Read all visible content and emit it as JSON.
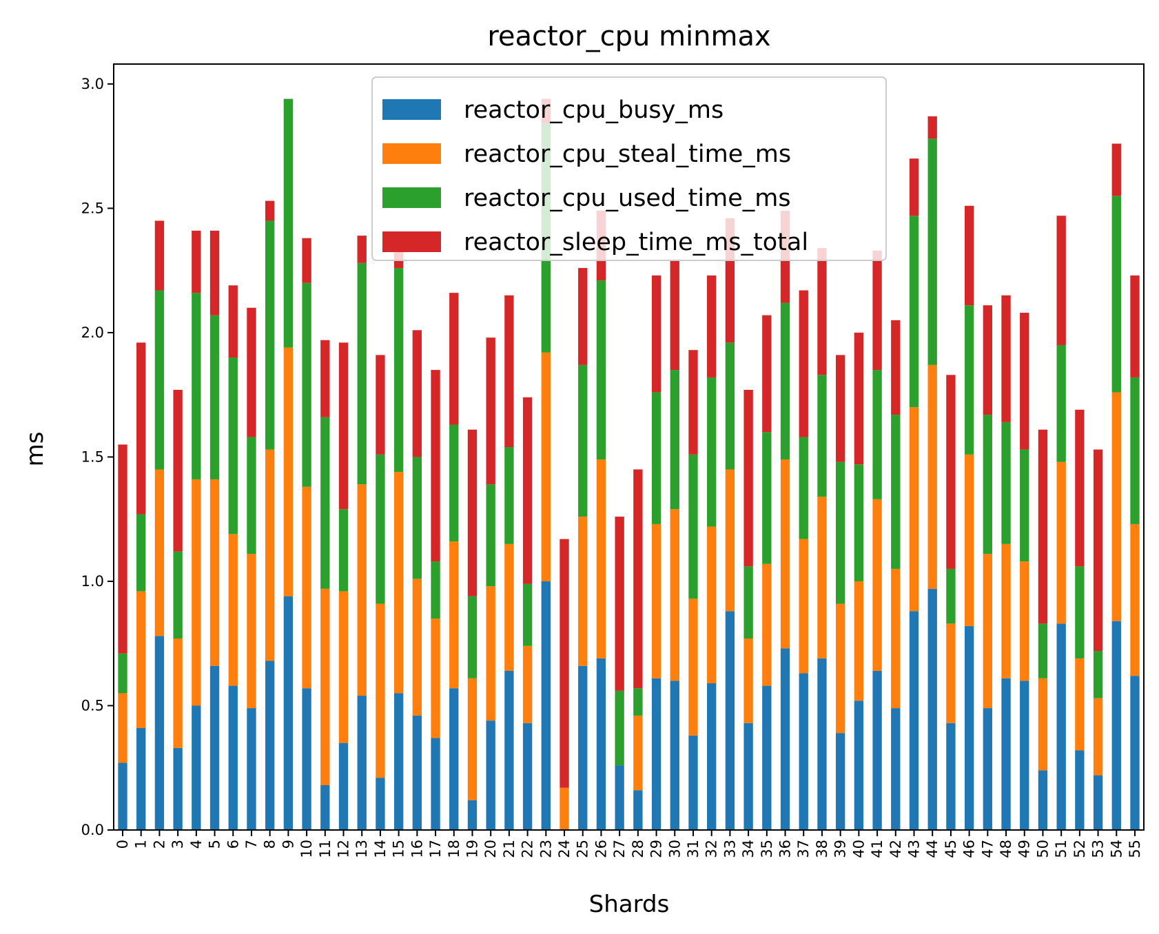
{
  "chart_data": {
    "type": "bar",
    "stacked": true,
    "title": "reactor_cpu minmax",
    "xlabel": "Shards",
    "ylabel": "ms",
    "ylim": [
      0,
      3.08
    ],
    "yticks": [
      "0.0",
      "0.5",
      "1.0",
      "1.5",
      "2.0",
      "2.5",
      "3.0"
    ],
    "legend_position": "top-center",
    "categories": [
      "0",
      "1",
      "2",
      "3",
      "4",
      "5",
      "6",
      "7",
      "8",
      "9",
      "10",
      "11",
      "12",
      "13",
      "14",
      "15",
      "16",
      "17",
      "18",
      "19",
      "20",
      "21",
      "22",
      "23",
      "24",
      "25",
      "26",
      "27",
      "28",
      "29",
      "30",
      "31",
      "32",
      "33",
      "34",
      "35",
      "36",
      "37",
      "38",
      "39",
      "40",
      "41",
      "42",
      "43",
      "44",
      "45",
      "46",
      "47",
      "48",
      "49",
      "50",
      "51",
      "52",
      "53",
      "54",
      "55"
    ],
    "series": [
      {
        "name": "reactor_cpu_busy_ms",
        "color": "#1f77b4",
        "values": [
          0.27,
          0.41,
          0.78,
          0.33,
          0.5,
          0.66,
          0.58,
          0.49,
          0.68,
          0.94,
          0.57,
          0.18,
          0.35,
          0.54,
          0.21,
          0.55,
          0.46,
          0.37,
          0.57,
          0.12,
          0.44,
          0.64,
          0.43,
          1.0,
          0.0,
          0.66,
          0.69,
          0.26,
          0.16,
          0.61,
          0.6,
          0.38,
          0.59,
          0.88,
          0.43,
          0.58,
          0.73,
          0.63,
          0.69,
          0.39,
          0.52,
          0.64,
          0.49,
          0.88,
          0.97,
          0.43,
          0.82,
          0.49,
          0.61,
          0.6,
          0.24,
          0.83,
          0.32,
          0.22,
          0.84,
          0.62
        ]
      },
      {
        "name": "reactor_cpu_steal_time_ms",
        "color": "#ff7f0e",
        "values": [
          0.28,
          0.55,
          0.67,
          0.44,
          0.91,
          0.75,
          0.61,
          0.62,
          0.85,
          1.0,
          0.81,
          0.79,
          0.61,
          0.85,
          0.7,
          0.89,
          0.55,
          0.48,
          0.59,
          0.49,
          0.54,
          0.51,
          0.31,
          0.92,
          0.17,
          0.6,
          0.8,
          0.0,
          0.3,
          0.62,
          0.69,
          0.55,
          0.63,
          0.57,
          0.34,
          0.49,
          0.76,
          0.54,
          0.65,
          0.52,
          0.48,
          0.69,
          0.56,
          0.82,
          0.9,
          0.4,
          0.69,
          0.62,
          0.54,
          0.48,
          0.37,
          0.65,
          0.37,
          0.31,
          0.92,
          0.61
        ]
      },
      {
        "name": "reactor_cpu_used_time_ms",
        "color": "#2ca02c",
        "values": [
          0.16,
          0.31,
          0.72,
          0.35,
          0.75,
          0.66,
          0.71,
          0.47,
          0.92,
          1.0,
          0.82,
          0.69,
          0.33,
          0.89,
          0.6,
          0.82,
          0.49,
          0.23,
          0.47,
          0.33,
          0.41,
          0.39,
          0.25,
          0.92,
          0.0,
          0.61,
          0.72,
          0.3,
          0.11,
          0.53,
          0.56,
          0.58,
          0.6,
          0.51,
          0.29,
          0.53,
          0.63,
          0.41,
          0.49,
          0.57,
          0.47,
          0.52,
          0.62,
          0.77,
          0.91,
          0.22,
          0.6,
          0.56,
          0.49,
          0.45,
          0.22,
          0.47,
          0.37,
          0.19,
          0.79,
          0.59
        ]
      },
      {
        "name": "reactor_sleep_time_ms_total",
        "color": "#d62728",
        "values": [
          0.84,
          0.69,
          0.28,
          0.65,
          0.25,
          0.34,
          0.29,
          0.52,
          0.08,
          0.0,
          0.18,
          0.31,
          0.67,
          0.11,
          0.4,
          0.1,
          0.51,
          0.77,
          0.53,
          0.67,
          0.59,
          0.61,
          0.75,
          0.1,
          1.0,
          0.39,
          0.28,
          0.7,
          0.88,
          0.47,
          0.44,
          0.42,
          0.41,
          0.5,
          0.71,
          0.47,
          0.37,
          0.59,
          0.51,
          0.43,
          0.53,
          0.48,
          0.38,
          0.23,
          0.09,
          0.78,
          0.4,
          0.44,
          0.51,
          0.55,
          0.78,
          0.52,
          0.63,
          0.81,
          0.21,
          0.41
        ]
      }
    ]
  }
}
